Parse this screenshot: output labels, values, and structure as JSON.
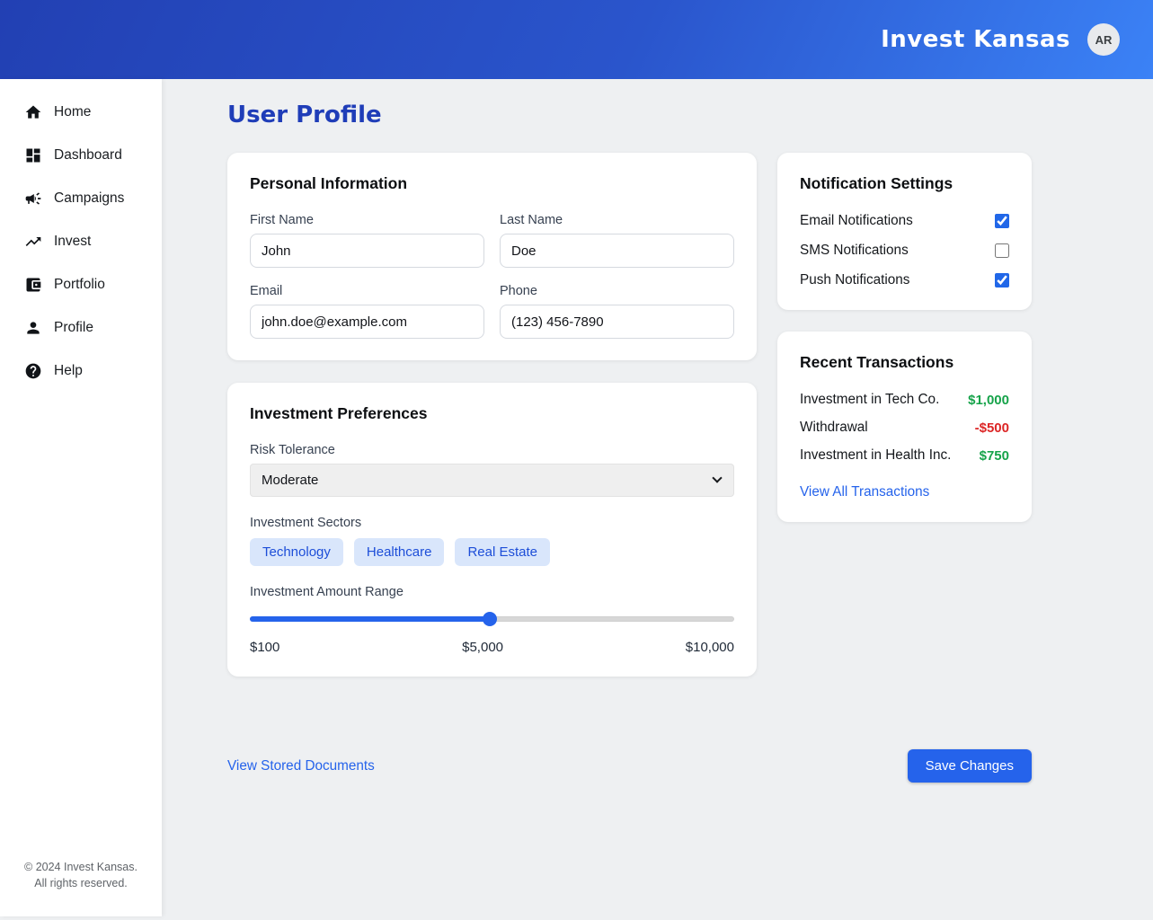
{
  "header": {
    "title": "Invest Kansas",
    "avatar_initials": "AR"
  },
  "sidebar": {
    "items": [
      {
        "label": "Home"
      },
      {
        "label": "Dashboard"
      },
      {
        "label": "Campaigns"
      },
      {
        "label": "Invest"
      },
      {
        "label": "Portfolio"
      },
      {
        "label": "Profile"
      },
      {
        "label": "Help"
      }
    ],
    "footer": "© 2024 Invest Kansas. All rights reserved."
  },
  "page": {
    "title": "User Profile"
  },
  "personal_info": {
    "title": "Personal Information",
    "fields": [
      {
        "label": "First Name",
        "value": "John"
      },
      {
        "label": "Last Name",
        "value": "Doe"
      },
      {
        "label": "Email",
        "value": "john.doe@example.com"
      },
      {
        "label": "Phone",
        "value": "(123) 456-7890"
      }
    ]
  },
  "preferences": {
    "title": "Investment Preferences",
    "risk_label": "Risk Tolerance",
    "risk_value": "Moderate",
    "sectors_label": "Investment Sectors",
    "sectors": [
      "Technology",
      "Healthcare",
      "Real Estate"
    ],
    "range_label": "Investment Amount Range",
    "range_min": "$100",
    "range_mid": "$5,000",
    "range_max": "$10,000",
    "slider_percent": 49.5
  },
  "notifications": {
    "title": "Notification Settings",
    "items": [
      {
        "label": "Email Notifications",
        "checked": true
      },
      {
        "label": "SMS Notifications",
        "checked": false
      },
      {
        "label": "Push Notifications",
        "checked": true
      }
    ]
  },
  "transactions": {
    "title": "Recent Transactions",
    "items": [
      {
        "label": "Investment in Tech Co.",
        "amount": "$1,000",
        "type": "positive"
      },
      {
        "label": "Withdrawal",
        "amount": "-$500",
        "type": "negative"
      },
      {
        "label": "Investment in Health Inc.",
        "amount": "$750",
        "type": "positive"
      }
    ],
    "link": "View All Transactions"
  },
  "actions": {
    "documents_link": "View Stored Documents",
    "save_button": "Save Changes"
  },
  "colors": {
    "header_gradient_start": "#2240b3",
    "header_gradient_end": "#3b82f6",
    "accent_blue": "#2563eb",
    "heading_blue": "#1f3db8",
    "positive_green": "#16a34a",
    "negative_red": "#dc2626",
    "chip_bg": "#d9e6fb",
    "chip_text": "#1d4ed8",
    "page_bg": "#eef0f2"
  }
}
